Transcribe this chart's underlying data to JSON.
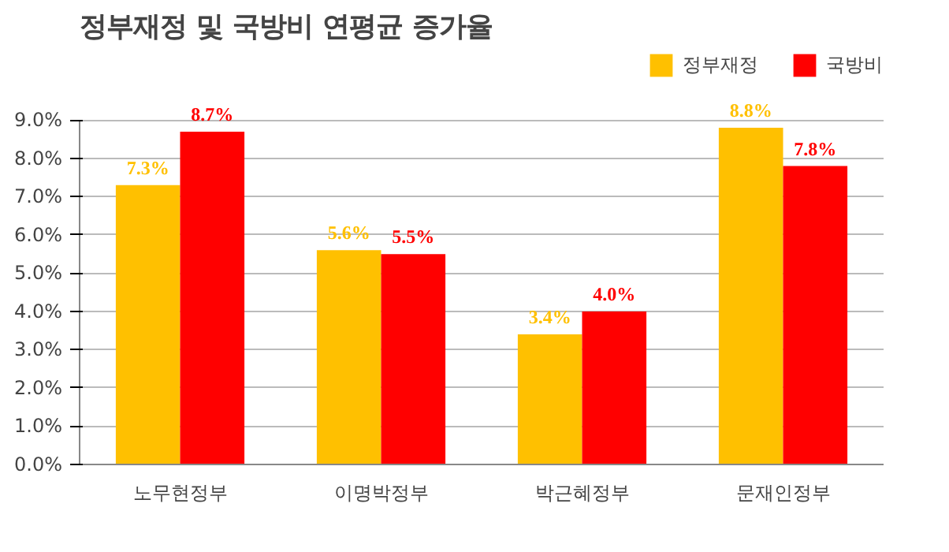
{
  "chart_data": {
    "type": "bar",
    "title": "정부재정 및 국방비 연평균 증가율",
    "categories": [
      "노무현정부",
      "이명박정부",
      "박근혜정부",
      "문재인정부"
    ],
    "series": [
      {
        "name": "정부재정",
        "color": "#ffc000",
        "values": [
          7.3,
          5.6,
          3.4,
          8.8
        ],
        "value_labels": [
          "7.3%",
          "5.6%",
          "3.4%",
          "8.8%"
        ]
      },
      {
        "name": "국방비",
        "color": "#ff0000",
        "values": [
          8.7,
          5.5,
          4.0,
          7.8
        ],
        "value_labels": [
          "8.7%",
          "5.5%",
          "4.0%",
          "7.8%"
        ]
      }
    ],
    "ylim": [
      0,
      9
    ],
    "yticks": [
      {
        "value": 0,
        "label": "0.0%"
      },
      {
        "value": 1,
        "label": "1.0%"
      },
      {
        "value": 2,
        "label": "2.0%"
      },
      {
        "value": 3,
        "label": "3.0%"
      },
      {
        "value": 4,
        "label": "4.0%"
      },
      {
        "value": 5,
        "label": "5.0%"
      },
      {
        "value": 6,
        "label": "6.0%"
      },
      {
        "value": 7,
        "label": "7.0%"
      },
      {
        "value": 8,
        "label": "8.0%"
      },
      {
        "value": 9,
        "label": "9.0%"
      }
    ],
    "grid": "y",
    "legend": "top right"
  }
}
